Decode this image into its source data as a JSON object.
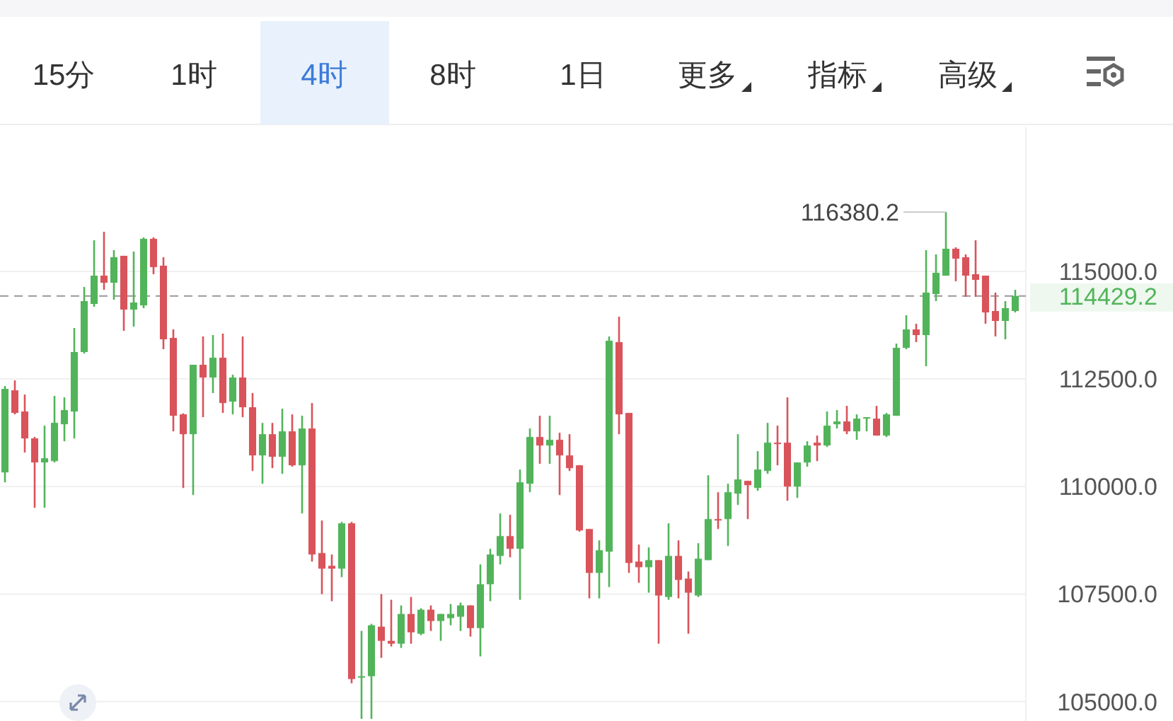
{
  "chart_data": {
    "type": "candlestick",
    "categories": [
      null,
      null,
      null,
      null,
      null,
      null,
      null,
      null,
      null,
      null,
      null,
      null,
      null,
      null,
      null,
      null,
      null,
      null,
      null,
      null,
      null,
      null,
      null,
      null,
      null,
      null,
      null,
      null,
      null,
      null,
      null,
      null,
      null,
      null,
      null,
      null,
      null,
      null,
      null,
      null,
      null,
      null,
      null,
      null,
      null,
      null,
      null,
      null,
      null,
      null,
      null,
      null,
      null,
      null,
      null,
      null,
      null,
      null,
      null,
      null,
      null,
      null,
      null,
      null,
      null,
      null,
      null,
      null,
      null,
      null,
      null,
      null,
      null,
      null,
      null,
      null,
      null,
      null,
      null,
      null,
      null,
      null,
      null,
      null,
      null,
      null,
      null,
      null,
      null,
      null,
      null,
      null,
      null,
      null,
      null,
      null,
      null,
      null,
      null,
      null,
      null,
      null,
      null
    ],
    "ohlc": [
      [
        110328,
        112335,
        110098,
        112269
      ],
      [
        112236,
        112467,
        111677,
        111710
      ],
      [
        111743,
        112138,
        110789,
        111118
      ],
      [
        111118,
        111151,
        109506,
        110559
      ],
      [
        110559,
        111414,
        109506,
        110657
      ],
      [
        110591,
        112105,
        110559,
        111480
      ],
      [
        111447,
        112072,
        111052,
        111776
      ],
      [
        111743,
        113684,
        111118,
        113125
      ],
      [
        113125,
        114638,
        113092,
        114309
      ],
      [
        114243,
        115724,
        114178,
        114901
      ],
      [
        114901,
        115921,
        114572,
        114737
      ],
      [
        114737,
        115494,
        114342,
        115329
      ],
      [
        115362,
        115362,
        113618,
        114112
      ],
      [
        114112,
        115461,
        113717,
        114276
      ],
      [
        114210,
        115790,
        114145,
        115757
      ],
      [
        115757,
        115790,
        114934,
        115099
      ],
      [
        115132,
        115329,
        113191,
        113421
      ],
      [
        113454,
        113651,
        111282,
        111644
      ],
      [
        111677,
        111700,
        109966,
        111216
      ],
      [
        111216,
        112829,
        109802,
        112829
      ],
      [
        112829,
        113487,
        111611,
        112533
      ],
      [
        112533,
        113520,
        112171,
        112993
      ],
      [
        112993,
        113553,
        111710,
        111940
      ],
      [
        111973,
        112598,
        111677,
        112533
      ],
      [
        112533,
        113487,
        111611,
        111842
      ],
      [
        111842,
        112171,
        110361,
        110723
      ],
      [
        110723,
        111479,
        110065,
        111216
      ],
      [
        111216,
        111479,
        110427,
        110690
      ],
      [
        110690,
        111808,
        110295,
        111282
      ],
      [
        111282,
        111677,
        110460,
        110493
      ],
      [
        110493,
        111644,
        109374,
        111348
      ],
      [
        111348,
        111940,
        108256,
        108420
      ],
      [
        108453,
        109210,
        107499,
        108091
      ],
      [
        108157,
        108420,
        107334,
        108091
      ],
      [
        108091,
        109177,
        107894,
        109144
      ],
      [
        109144,
        109177,
        105426,
        105525
      ],
      [
        105558,
        106643,
        104600,
        105591
      ],
      [
        105591,
        106808,
        104600,
        106775
      ],
      [
        106742,
        107499,
        106018,
        106413
      ],
      [
        106413,
        107367,
        106282,
        106347
      ],
      [
        106347,
        107236,
        106249,
        107038
      ],
      [
        107038,
        107433,
        106347,
        106611
      ],
      [
        106578,
        107170,
        106545,
        107137
      ],
      [
        107137,
        107236,
        106643,
        106874
      ],
      [
        106874,
        107038,
        106413,
        107038
      ],
      [
        106940,
        107269,
        106775,
        107038
      ],
      [
        106973,
        107302,
        106643,
        107236
      ],
      [
        107236,
        107236,
        106512,
        106709
      ],
      [
        106709,
        108190,
        106051,
        107729
      ],
      [
        107729,
        108552,
        107334,
        108420
      ],
      [
        108387,
        109374,
        108190,
        108848
      ],
      [
        108848,
        109342,
        108355,
        108552
      ],
      [
        108552,
        110394,
        107367,
        110098
      ],
      [
        110065,
        111348,
        109868,
        111151
      ],
      [
        111151,
        111644,
        110526,
        110953
      ],
      [
        110953,
        111644,
        110526,
        111085
      ],
      [
        111085,
        111249,
        109802,
        110723
      ],
      [
        110723,
        111216,
        110361,
        110427
      ],
      [
        110493,
        110500,
        108950,
        108979
      ],
      [
        109012,
        109012,
        107400,
        107992
      ],
      [
        107992,
        108749,
        107400,
        108519
      ],
      [
        108486,
        113487,
        107663,
        113388
      ],
      [
        113355,
        113947,
        111216,
        111677
      ],
      [
        111710,
        111710,
        107992,
        108223
      ],
      [
        108256,
        108650,
        107762,
        108124
      ],
      [
        108124,
        108585,
        107532,
        108289
      ],
      [
        108289,
        108289,
        106347,
        107466
      ],
      [
        107433,
        109144,
        107367,
        108387
      ],
      [
        108387,
        108749,
        107400,
        107828
      ],
      [
        107861,
        108025,
        106578,
        107532
      ],
      [
        107466,
        108683,
        107433,
        108322
      ],
      [
        108289,
        110262,
        108289,
        109243
      ],
      [
        109243,
        109868,
        109012,
        109210
      ],
      [
        109243,
        110065,
        108618,
        109868
      ],
      [
        109835,
        111216,
        109572,
        110164
      ],
      [
        110131,
        110131,
        109243,
        110032
      ],
      [
        109967,
        110822,
        109900,
        110394
      ],
      [
        110361,
        111479,
        110295,
        111019
      ],
      [
        111019,
        111414,
        110493,
        110986
      ],
      [
        111019,
        112072,
        109670,
        109999
      ],
      [
        109999,
        110559,
        109736,
        110559
      ],
      [
        110559,
        111052,
        110460,
        110953
      ],
      [
        111019,
        111184,
        110591,
        110953
      ],
      [
        110953,
        111743,
        110920,
        111414
      ],
      [
        111447,
        111776,
        111348,
        111512
      ],
      [
        111512,
        111874,
        111216,
        111282
      ],
      [
        111282,
        111677,
        111085,
        111578
      ],
      [
        111578,
        111611,
        111282,
        111611
      ],
      [
        111578,
        111874,
        111184,
        111184
      ],
      [
        111184,
        111710,
        111151,
        111677
      ],
      [
        111644,
        113322,
        111644,
        113223
      ],
      [
        113223,
        113980,
        113191,
        113651
      ],
      [
        113651,
        113783,
        113355,
        113519
      ],
      [
        113519,
        115494,
        112796,
        114507
      ],
      [
        114474,
        115395,
        114309,
        114967
      ],
      [
        114901,
        116380.2,
        114901,
        115526
      ],
      [
        115526,
        115560,
        114770,
        115296
      ],
      [
        115329,
        115395,
        114408,
        114901
      ],
      [
        114934,
        115724,
        114408,
        114803
      ],
      [
        114901,
        114901,
        113783,
        114046
      ],
      [
        114079,
        114507,
        113487,
        113848
      ],
      [
        113848,
        114309,
        113421,
        114145
      ],
      [
        114079,
        114572,
        114046,
        114429.2
      ]
    ],
    "colors": [
      "#52b45a",
      "#d9535a",
      "#d9535a",
      "#d9535a",
      "#52b45a",
      "#52b45a",
      "#52b45a",
      "#52b45a",
      "#52b45a",
      "#52b45a",
      "#d9535a",
      "#52b45a",
      "#d9535a",
      "#52b45a",
      "#52b45a",
      "#d9535a",
      "#d9535a",
      "#d9535a",
      "#d9535a",
      "#52b45a",
      "#d9535a",
      "#52b45a",
      "#d9535a",
      "#52b45a",
      "#d9535a",
      "#d9535a",
      "#52b45a",
      "#d9535a",
      "#52b45a",
      "#d9535a",
      "#52b45a",
      "#d9535a",
      "#d9535a",
      "#d9535a",
      "#52b45a",
      "#d9535a",
      "#52b45a",
      "#52b45a",
      "#d9535a",
      "#d9535a",
      "#52b45a",
      "#d9535a",
      "#52b45a",
      "#d9535a",
      "#52b45a",
      "#52b45a",
      "#52b45a",
      "#d9535a",
      "#52b45a",
      "#52b45a",
      "#52b45a",
      "#d9535a",
      "#52b45a",
      "#52b45a",
      "#d9535a",
      "#52b45a",
      "#d9535a",
      "#d9535a",
      "#d9535a",
      "#d9535a",
      "#52b45a",
      "#52b45a",
      "#d9535a",
      "#d9535a",
      "#d9535a",
      "#52b45a",
      "#d9535a",
      "#52b45a",
      "#d9535a",
      "#d9535a",
      "#52b45a",
      "#52b45a",
      "#d9535a",
      "#52b45a",
      "#52b45a",
      "#d9535a",
      "#52b45a",
      "#52b45a",
      "#d9535a",
      "#d9535a",
      "#52b45a",
      "#52b45a",
      "#d9535a",
      "#52b45a",
      "#52b45a",
      "#d9535a",
      "#52b45a",
      "#52b45a",
      "#d9535a",
      "#52b45a",
      "#52b45a",
      "#52b45a",
      "#d9535a",
      "#52b45a",
      "#52b45a",
      "#52b45a",
      "#d9535a",
      "#d9535a",
      "#d9535a",
      "#d9535a",
      "#d9535a",
      "#52b45a",
      "#52b45a"
    ],
    "ylim": [
      104550,
      118350
    ],
    "yticks": [
      {
        "value": 105000,
        "label": "105000.0"
      },
      {
        "value": 107500,
        "label": "107500.0"
      },
      {
        "value": 110000,
        "label": "110000.0"
      },
      {
        "value": 112500,
        "label": "112500.0"
      },
      {
        "value": 115000,
        "label": "115000.0"
      }
    ],
    "grid": "y",
    "tick_labels": "y",
    "ref_lines": [
      {
        "axis": "y",
        "value": 114429.2,
        "label": "114429.2",
        "line_style": "dashed"
      }
    ],
    "annotations": [
      "15分",
      "1时",
      "4时",
      "8时",
      "1日",
      "更多",
      "指标",
      "高级",
      "116380.2"
    ]
  }
}
